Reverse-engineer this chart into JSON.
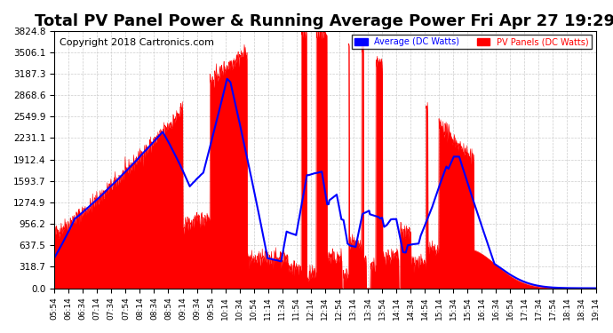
{
  "title": "Total PV Panel Power & Running Average Power Fri Apr 27 19:29",
  "copyright": "Copyright 2018 Cartronics.com",
  "legend_avg": "Average (DC Watts)",
  "legend_pv": "PV Panels (DC Watts)",
  "y_tick_values": [
    0.0,
    318.7,
    637.5,
    956.2,
    1274.9,
    1593.7,
    1912.4,
    2231.1,
    2549.9,
    2868.6,
    3187.3,
    3506.1,
    3824.8
  ],
  "y_max": 3824.8,
  "y_min": 0.0,
  "background_color": "#ffffff",
  "plot_bg_color": "#ffffff",
  "grid_color": "#cccccc",
  "pv_color": "#ff0000",
  "avg_color": "#0000ff",
  "title_fontsize": 13,
  "copyright_fontsize": 8,
  "x_labels": [
    "05:54",
    "06:14",
    "06:34",
    "07:14",
    "07:34",
    "07:54",
    "08:14",
    "08:34",
    "08:54",
    "09:14",
    "09:34",
    "09:54",
    "10:14",
    "10:34",
    "10:54",
    "11:14",
    "11:34",
    "11:54",
    "12:14",
    "12:34",
    "12:54",
    "13:14",
    "13:34",
    "13:54",
    "14:14",
    "14:34",
    "14:54",
    "15:14",
    "15:34",
    "15:54",
    "16:14",
    "16:34",
    "16:54",
    "17:14",
    "17:34",
    "17:54",
    "18:14",
    "18:34",
    "19:14"
  ]
}
